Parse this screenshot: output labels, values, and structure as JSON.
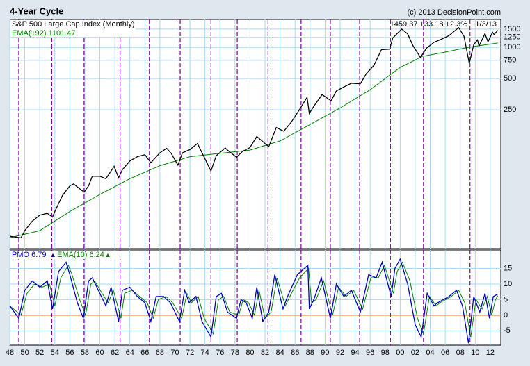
{
  "chart_data": [
    {
      "type": "line",
      "title": "4-Year Cycle",
      "source": "(c) 2013 DecisionPoint.com",
      "header_stats": "1459.37 +33.18 +2.3%",
      "date": "1/3/13",
      "log_scale": true,
      "xlim": [
        1948,
        2013.4
      ],
      "ylim": [
        11.4,
        1860
      ],
      "yticks": [
        250,
        500,
        750,
        1000,
        1250,
        1500
      ],
      "cycle_lines": [
        1949.2,
        1953.6,
        1957.9,
        1962.7,
        1966.6,
        1970.7,
        1974.8,
        1978.3,
        1982.4,
        1986.8,
        1990.7,
        1994.6,
        1998.7,
        2003.1,
        2009.3
      ],
      "cycle_color": "#8000a0",
      "series": [
        {
          "name": "S&P 500 Large Cap Index (Monthly)",
          "color": "#000000",
          "x": [
            1948,
            1949.5,
            1950,
            1951,
            1952,
            1953,
            1953.7,
            1954,
            1955,
            1956,
            1956.5,
            1957,
            1957.9,
            1958.5,
            1959,
            1960,
            1960.8,
            1961.9,
            1962.5,
            1963,
            1964,
            1965,
            1966,
            1966.8,
            1968,
            1968.9,
            1969.5,
            1970.4,
            1971,
            1972,
            1973,
            1974.8,
            1975.5,
            1976.7,
            1977,
            1978.2,
            1979,
            1980,
            1980.9,
            1982.5,
            1983.5,
            1984.5,
            1985.5,
            1986.5,
            1987.6,
            1987.9,
            1988.5,
            1989.6,
            1990.8,
            1991.5,
            1992.5,
            1993.5,
            1994.7,
            1995.5,
            1996.5,
            1997.5,
            1998.6,
            1999,
            2000.2,
            2001,
            2001.7,
            2002.7,
            2003.5,
            2004.5,
            2005.5,
            2006.5,
            2007.8,
            2008.5,
            2009.2,
            2009.8,
            2010.3,
            2010.5,
            2011.3,
            2011.7,
            2012.3,
            2012.5,
            2013
          ],
          "values": [
            15,
            14.5,
            17,
            21,
            24,
            25,
            23,
            26,
            37,
            46,
            48,
            45,
            40,
            46,
            57,
            57,
            54,
            71,
            55,
            66,
            80,
            88,
            92,
            77,
            96,
            106,
            95,
            73,
            96,
            103,
            118,
            64,
            90,
            107,
            102,
            87,
            99,
            108,
            138,
            110,
            168,
            155,
            190,
            245,
            330,
            230,
            270,
            350,
            305,
            380,
            415,
            450,
            445,
            560,
            670,
            950,
            960,
            1230,
            1500,
            1350,
            1040,
            800,
            980,
            1120,
            1200,
            1300,
            1550,
            1280,
            700,
            1060,
            1180,
            1030,
            1360,
            1130,
            1400,
            1330,
            1459.37
          ]
        },
        {
          "name": "EMA(192) 1101.47",
          "color": "#008000",
          "x": [
            1948,
            1952,
            1956,
            1960,
            1964,
            1968,
            1972,
            1976,
            1980,
            1984,
            1988,
            1992,
            1996,
            2000,
            2003,
            2006,
            2009,
            2013
          ],
          "values": [
            14.5,
            17,
            26,
            38,
            54,
            72,
            88,
            95,
            102,
            125,
            180,
            260,
            390,
            640,
            820,
            900,
            1000,
            1101.47
          ]
        }
      ]
    },
    {
      "type": "line",
      "xlim": [
        1948,
        2013.4
      ],
      "ylim": [
        -9.6,
        20.9
      ],
      "yticks": [
        -5,
        0,
        5,
        10,
        15
      ],
      "zero_line": {
        "value": 0,
        "color": "#e07020"
      },
      "xticks": [
        {
          "value": 1948,
          "label": "48"
        },
        {
          "value": 1950,
          "label": "50"
        },
        {
          "value": 1952,
          "label": "52"
        },
        {
          "value": 1954,
          "label": "54"
        },
        {
          "value": 1956,
          "label": "56"
        },
        {
          "value": 1958,
          "label": "58"
        },
        {
          "value": 1960,
          "label": "60"
        },
        {
          "value": 1962,
          "label": "62"
        },
        {
          "value": 1964,
          "label": "64"
        },
        {
          "value": 1966,
          "label": "66"
        },
        {
          "value": 1968,
          "label": "68"
        },
        {
          "value": 1970,
          "label": "70"
        },
        {
          "value": 1972,
          "label": "72"
        },
        {
          "value": 1974,
          "label": "74"
        },
        {
          "value": 1976,
          "label": "76"
        },
        {
          "value": 1978,
          "label": "78"
        },
        {
          "value": 1980,
          "label": "80"
        },
        {
          "value": 1982,
          "label": "82"
        },
        {
          "value": 1984,
          "label": "84"
        },
        {
          "value": 1986,
          "label": "86"
        },
        {
          "value": 1988,
          "label": "88"
        },
        {
          "value": 1990,
          "label": "90"
        },
        {
          "value": 1992,
          "label": "92"
        },
        {
          "value": 1994,
          "label": "94"
        },
        {
          "value": 1996,
          "label": "96"
        },
        {
          "value": 1998,
          "label": "98"
        },
        {
          "value": 2000,
          "label": "00"
        },
        {
          "value": 2002,
          "label": "02"
        },
        {
          "value": 2004,
          "label": "04"
        },
        {
          "value": 2006,
          "label": "06"
        },
        {
          "value": 2008,
          "label": "08"
        },
        {
          "value": 2010,
          "label": "10"
        },
        {
          "value": 2012,
          "label": "12"
        }
      ],
      "series": [
        {
          "name": "PMO 6.79",
          "color": "#0000c0",
          "x": [
            1948,
            1949.2,
            1950,
            1951,
            1952,
            1953,
            1953.7,
            1954.5,
            1955.5,
            1956,
            1957,
            1957.8,
            1958.5,
            1959,
            1960,
            1960.8,
            1961.5,
            1962.5,
            1963,
            1964,
            1965,
            1966,
            1966.8,
            1967.5,
            1968.5,
            1969.4,
            1970.6,
            1971.3,
            1971.9,
            1972.8,
            1973.6,
            1974.8,
            1975.5,
            1976.2,
            1977,
            1978.2,
            1978.8,
            1979.5,
            1980.3,
            1980.9,
            1981.7,
            1982.5,
            1983.3,
            1984.4,
            1985,
            1986.3,
            1987.7,
            1987.9,
            1988.5,
            1989.5,
            1990.7,
            1991.5,
            1992.5,
            1993.5,
            1994.7,
            1995.8,
            1996.8,
            1997.6,
            1998.8,
            1999.3,
            2000,
            2001,
            2002,
            2002.8,
            2003.6,
            2004.5,
            2005,
            2006.5,
            2007.5,
            2008.3,
            2009.1,
            2009.8,
            2010.6,
            2011.3,
            2011.9,
            2012.4,
            2013
          ],
          "values": [
            3,
            -1,
            8,
            11,
            9,
            11,
            2,
            14,
            17,
            13,
            4,
            -1,
            11,
            12,
            7,
            3,
            9,
            -2,
            8,
            9,
            6,
            4,
            -2,
            6,
            6,
            4,
            -2,
            8,
            4,
            6,
            -2,
            -7,
            6,
            7,
            1,
            -1,
            5,
            4,
            -1,
            9,
            -2,
            1,
            13,
            2,
            6,
            13,
            16,
            2,
            5,
            12,
            -1,
            10,
            6,
            8,
            1,
            13,
            12,
            17,
            6,
            15,
            18,
            10,
            -3,
            -7,
            7,
            3,
            4,
            6,
            8,
            3,
            -9,
            6,
            1,
            7,
            -1,
            6,
            6.79
          ]
        },
        {
          "name": "EMA(10) 6.24",
          "color": "#008000",
          "x": [
            1948,
            1949.5,
            1950.3,
            1951.3,
            1952.3,
            1953.3,
            1954,
            1954.8,
            1955.8,
            1956.3,
            1957.3,
            1958.1,
            1958.8,
            1959.3,
            1960.3,
            1961.1,
            1961.8,
            1962.8,
            1963.3,
            1964.3,
            1965.3,
            1966.3,
            1967.1,
            1967.8,
            1968.8,
            1969.7,
            1970.9,
            1971.6,
            1972.2,
            1973.1,
            1973.9,
            1975.1,
            1975.8,
            1976.5,
            1977.3,
            1978.5,
            1979.1,
            1979.8,
            1980.6,
            1981.2,
            1982,
            1982.8,
            1983.6,
            1984.7,
            1985.3,
            1986.6,
            1987.8,
            1988.2,
            1988.8,
            1989.8,
            1991,
            1991.8,
            1992.8,
            1993.8,
            1995,
            1996.1,
            1997.1,
            1997.9,
            1999.1,
            1999.6,
            2000.3,
            2001.3,
            2002.3,
            2003.1,
            2003.9,
            2004.8,
            2005.3,
            2006.8,
            2007.8,
            2008.6,
            2009.4,
            2010.1,
            2010.9,
            2011.6,
            2012.2,
            2012.7,
            2013
          ],
          "values": [
            3,
            0,
            7,
            10,
            9,
            10,
            3,
            12,
            16,
            13,
            5,
            0,
            10,
            11,
            7,
            4,
            8,
            -1,
            7,
            8,
            6,
            4,
            -1,
            5,
            6,
            4,
            -1,
            7,
            4,
            6,
            -1,
            -6,
            5,
            6,
            1,
            0,
            5,
            4,
            0,
            8,
            -1,
            1,
            12,
            3,
            6,
            12,
            15,
            4,
            5,
            11,
            0,
            9,
            6,
            8,
            2,
            12,
            12,
            16,
            7,
            14,
            17,
            11,
            -1,
            -6,
            6,
            3,
            4,
            6,
            8,
            4,
            -7,
            5,
            2,
            6,
            0,
            5,
            6.24
          ]
        }
      ]
    }
  ]
}
